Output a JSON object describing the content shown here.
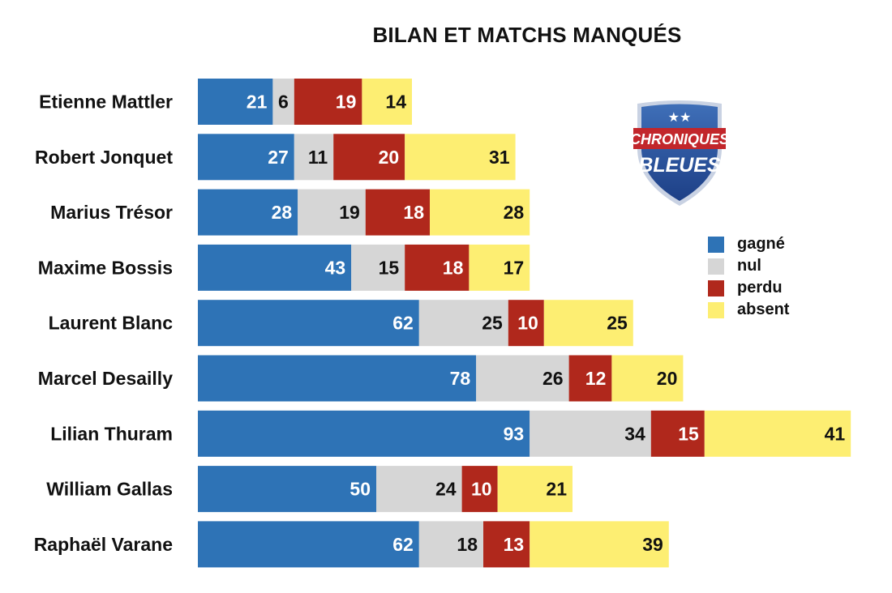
{
  "colors": {
    "gagne": "#2e73b6",
    "nul": "#d6d6d6",
    "perdu": "#b0281c",
    "absent": "#fdee72"
  },
  "logo": {
    "line1": "CHRONIQUES",
    "line2": "BLEUES"
  },
  "legend": {
    "items": [
      {
        "label": "gagné",
        "color": "#2e73b6"
      },
      {
        "label": "nul",
        "color": "#d6d6d6"
      },
      {
        "label": "perdu",
        "color": "#b0281c"
      },
      {
        "label": "absent",
        "color": "#fdee72"
      }
    ]
  },
  "chart_data": {
    "type": "bar",
    "orientation": "horizontal",
    "stacked": true,
    "title": "BILAN ET MATCHS MANQUÉS",
    "categories": [
      "Etienne Mattler",
      "Robert Jonquet",
      "Marius Trésor",
      "Maxime Bossis",
      "Laurent Blanc",
      "Marcel Desailly",
      "Lilian Thuram",
      "William Gallas",
      "Raphaël Varane"
    ],
    "series": [
      {
        "name": "gagné",
        "color": "#2e73b6",
        "values": [
          21,
          27,
          28,
          43,
          62,
          78,
          93,
          50,
          62
        ]
      },
      {
        "name": "nul",
        "color": "#d6d6d6",
        "values": [
          6,
          11,
          19,
          15,
          25,
          26,
          34,
          24,
          18
        ]
      },
      {
        "name": "perdu",
        "color": "#b0281c",
        "values": [
          19,
          20,
          18,
          18,
          10,
          12,
          15,
          10,
          13
        ]
      },
      {
        "name": "absent",
        "color": "#fdee72",
        "values": [
          14,
          31,
          28,
          17,
          25,
          20,
          41,
          21,
          39
        ]
      }
    ],
    "legend_position": "right",
    "grid": false
  }
}
